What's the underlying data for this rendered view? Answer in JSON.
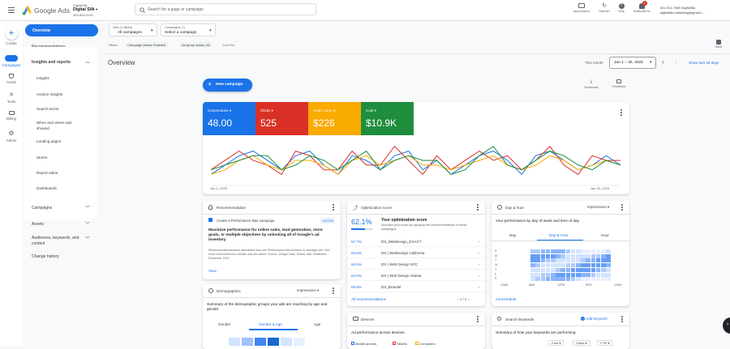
{
  "top": {
    "product": "Google Ads",
    "account_name": "DigitalSilk",
    "account_sub": "Digital Silk",
    "account_id": "365-895-2942",
    "search_placeholder": "Search for a page or campaign",
    "icons": [
      {
        "label": "Appearance"
      },
      {
        "label": "Refresh"
      },
      {
        "label": "Help"
      },
      {
        "label": "Notifications",
        "badge": "1"
      }
    ],
    "user_line1": "541-911-7368 DigitalSilk",
    "user_line2": "digitalsilk.marketing@gmail.c..."
  },
  "rail": [
    {
      "label": "Create"
    },
    {
      "label": "Campaigns"
    },
    {
      "label": "Goals"
    },
    {
      "label": "Tools"
    },
    {
      "label": "Billing"
    },
    {
      "label": "Admin"
    }
  ],
  "nav": {
    "overview": "Overview",
    "recommendations": "Recommendations",
    "insights": "Insights and reports",
    "sub": [
      "Insights",
      "Auction insights",
      "Search terms",
      "When and where ads showed",
      "Landing pages",
      "Stores",
      "Report editor",
      "Dashboards"
    ],
    "campaigns": "Campaigns",
    "assets": "Assets",
    "audiences": "Audiences, keywords, and content",
    "history": "Change history"
  },
  "filters": {
    "view_label": "View (2 filters)",
    "view_value": "All campaigns",
    "campaigns_label": "Campaigns (7)",
    "campaigns_value": "Select a campaign",
    "filters_label": "Filters",
    "chip1": "Campaign status: Enabled",
    "chip2": "Ad group status: All",
    "add": "Add filter",
    "save": "Save"
  },
  "page": {
    "title": "Overview",
    "range_label": "This month",
    "range_value": "Jan 1 – 30, 2025",
    "last30": "Show last 30 days",
    "new_campaign": "New campaign",
    "download": "Download",
    "feedback": "Feedback"
  },
  "metrics": [
    {
      "label": "Conversions",
      "value": "48.00",
      "color": "#1a73e8"
    },
    {
      "label": "Clicks",
      "value": "525",
      "color": "#d93025"
    },
    {
      "label": "Cost / conv.",
      "value": "$226",
      "color": "#f9ab00"
    },
    {
      "label": "Cost",
      "value": "$10.9K",
      "color": "#1e8e3e"
    }
  ],
  "chart_data": {
    "type": "line",
    "x_start": "Jan 1, 2025",
    "x_end": "Jan 30, 2025",
    "series": [
      {
        "color": "#1a73e8",
        "values": [
          2,
          4,
          6,
          7,
          5,
          3,
          6,
          7,
          4,
          2,
          6,
          5,
          3,
          6,
          7,
          3,
          5,
          2,
          4,
          6,
          7,
          5,
          2,
          6,
          7,
          5,
          3,
          4,
          6,
          4
        ]
      },
      {
        "color": "#d93025",
        "values": [
          3,
          5,
          7,
          5,
          4,
          2,
          7,
          6,
          3,
          3,
          7,
          4,
          4,
          8,
          5,
          2,
          6,
          3,
          5,
          7,
          5,
          6,
          3,
          5,
          8,
          4,
          2,
          6,
          5,
          5
        ]
      },
      {
        "color": "#f9ab00",
        "values": [
          2,
          3,
          5,
          6,
          4,
          3,
          5,
          5,
          4,
          2,
          5,
          6,
          4,
          5,
          6,
          4,
          4,
          3,
          4,
          5,
          6,
          4,
          3,
          4,
          6,
          5,
          3,
          4,
          5,
          4
        ]
      },
      {
        "color": "#1e8e3e",
        "values": [
          3,
          4,
          5,
          6,
          6,
          3,
          4,
          6,
          5,
          3,
          5,
          7,
          3,
          5,
          6,
          5,
          5,
          2,
          3,
          6,
          8,
          4,
          3,
          5,
          7,
          6,
          4,
          3,
          5,
          4
        ]
      }
    ]
  },
  "rec": {
    "title": "Recommendation",
    "item": "Create a Performance Max campaign",
    "badge": "+10.2%",
    "headline": "Maximize performance for online sales, lead generation, store goals, or multiple objectives by unlocking all of Google's ad inventory",
    "body": "Recommended because advertisers who use Performance Max achieve on average over 18% more conversions at a similar cost per action. Source: Google Data, Global, Ads, November - December 2022",
    "view": "View"
  },
  "opt": {
    "title": "Optimization score",
    "score": "62.1%",
    "heading": "Your optimization score",
    "desc": "Increase your score by applying the recommendations in these campaigns",
    "rows": [
      {
        "pct": "57.7%",
        "name": "DS_WebDesign_EXACT"
      },
      {
        "pct": "64.5%",
        "name": "DS | WebDesign California"
      },
      {
        "pct": "64.5%",
        "name": "DS | Web Design NYC"
      },
      {
        "pct": "64.5%",
        "name": "DS | Web Design Atlanta"
      },
      {
        "pct": "65.8%",
        "name": "DS_Brandel"
      }
    ],
    "all": "All recommendations",
    "pager": "1 / 2"
  },
  "dh": {
    "title": "Day & hour",
    "metric": "Impressions",
    "heading": "Your performance by day of week and time of day",
    "tabs": [
      "Day",
      "Day & Hour",
      "Hour"
    ],
    "days": [
      "S",
      "M",
      "T",
      "W",
      "T",
      "F",
      "S"
    ],
    "hours": [
      "12AM",
      "6AM",
      "12PM",
      "6PM",
      "12AM"
    ],
    "link": "Ad schedule"
  },
  "demo": {
    "title": "Demographics",
    "metric": "Impressions",
    "desc": "Summary of the demographic groups your ads are reaching by age and gender",
    "tabs": [
      "Gender",
      "Gender & Age",
      "Age"
    ]
  },
  "devices": {
    "title": "Devices",
    "desc": "Ad performance across devices",
    "legend": [
      "Mobile phones",
      "Tablets",
      "Computers"
    ]
  },
  "kw": {
    "title": "Search keywords",
    "add": "Add keyword",
    "desc": "Summary of how your keywords are performing",
    "cols": [
      "Cost",
      "Clicks",
      "CTR"
    ]
  }
}
